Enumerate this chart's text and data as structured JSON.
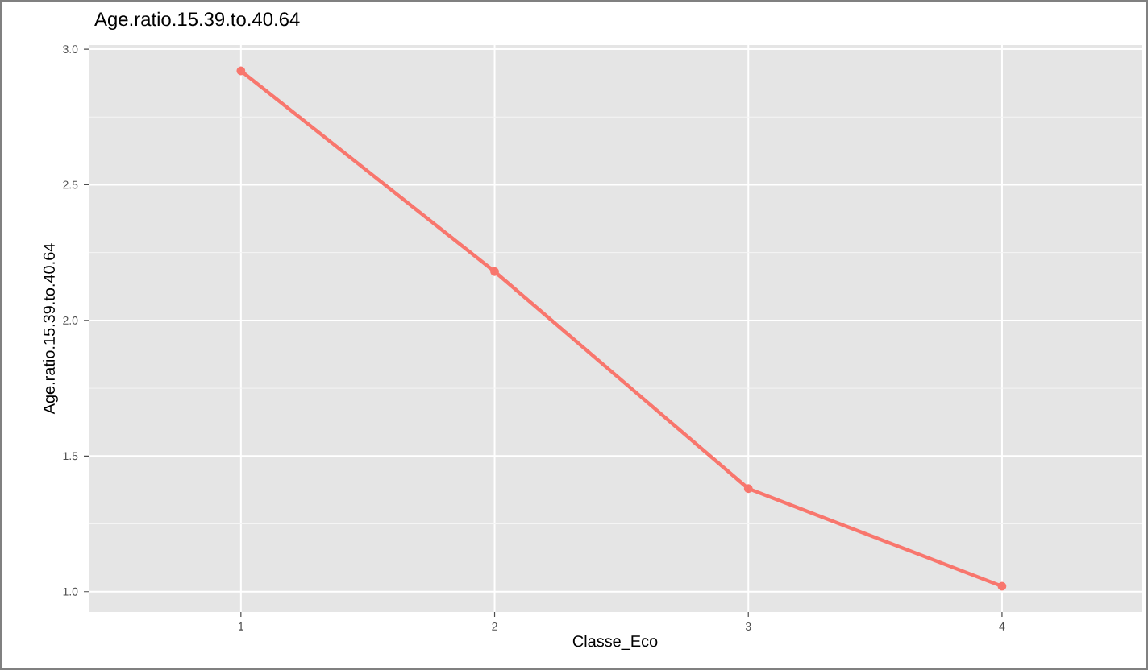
{
  "chart_data": {
    "type": "line",
    "title": "Age.ratio.15.39.to.40.64",
    "xlabel": "Classe_Eco",
    "ylabel": "Age.ratio.15.39.to.40.64",
    "categories": [
      "1",
      "2",
      "3",
      "4"
    ],
    "series": [
      {
        "color": "#f8766d",
        "values": [
          2.92,
          2.18,
          1.38,
          1.02
        ]
      }
    ],
    "ylim": [
      0.925,
      3.015
    ],
    "yticks": [
      {
        "value": 1,
        "label": "1.0"
      },
      1.5,
      {
        "value": 2,
        "label": "2.0"
      },
      2.5,
      {
        "value": 3,
        "label": "3.0"
      }
    ],
    "grid": true,
    "marker": "circle",
    "line_style": "solid"
  }
}
